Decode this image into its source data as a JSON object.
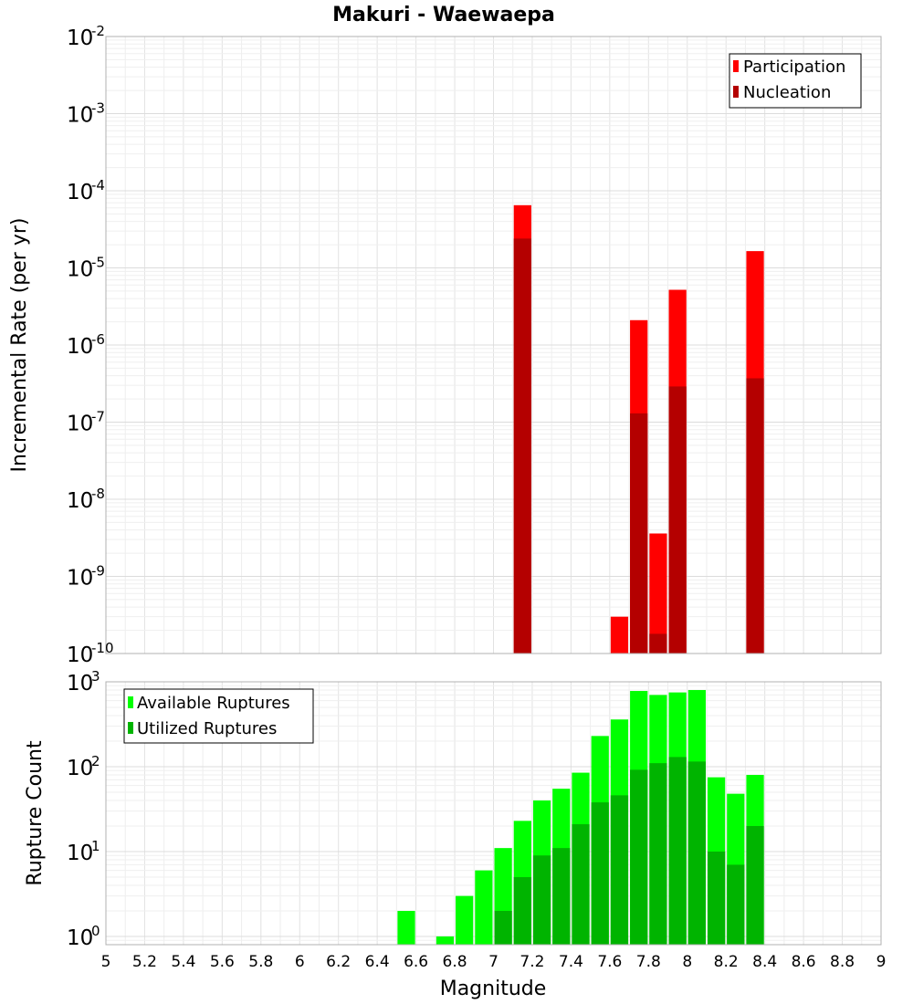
{
  "chart_data": [
    {
      "type": "bar",
      "title": "Makuri - Waewaepa",
      "ylabel": "Incremental Rate (per yr)",
      "xlabel": "",
      "yscale": "log",
      "ylim": [
        1e-10,
        0.01
      ],
      "xlim": [
        5,
        9
      ],
      "bar_width": 0.1,
      "y_tick_exponents": [
        "-2",
        "-3",
        "-4",
        "-5",
        "-6",
        "-7",
        "-8",
        "-9",
        "-10"
      ],
      "y_tick_base": "10",
      "legend_position": "top-right",
      "grid": true,
      "series": [
        {
          "name": "Participation",
          "color": "#ff0000",
          "x": [
            7.15,
            7.65,
            7.75,
            7.85,
            7.95,
            8.35
          ],
          "values": [
            6.5e-05,
            3e-10,
            2.1e-06,
            3.6e-09,
            5.2e-06,
            1.65e-05
          ]
        },
        {
          "name": "Nucleation",
          "color": "#b40000",
          "x": [
            7.15,
            7.75,
            7.85,
            7.95,
            8.35
          ],
          "values": [
            2.4e-05,
            1.3e-07,
            1.8e-10,
            2.9e-07,
            3.7e-07
          ]
        }
      ]
    },
    {
      "type": "bar",
      "title": "",
      "ylabel": "Rupture Count",
      "xlabel": "Magnitude",
      "yscale": "log",
      "ylim": [
        0.8,
        1000
      ],
      "xlim": [
        5,
        9
      ],
      "bar_width": 0.1,
      "x_ticks": [
        "5",
        "5.2",
        "5.4",
        "5.6",
        "5.8",
        "6",
        "6.2",
        "6.4",
        "6.6",
        "6.8",
        "7",
        "7.2",
        "7.4",
        "7.6",
        "7.8",
        "8",
        "8.2",
        "8.4",
        "8.6",
        "8.8",
        "9"
      ],
      "y_tick_exponents": [
        "3",
        "2",
        "1",
        "0"
      ],
      "y_tick_base": "10",
      "legend_position": "top-left",
      "grid": true,
      "series": [
        {
          "name": "Available Ruptures",
          "color": "#00ff00",
          "x": [
            6.55,
            6.75,
            6.85,
            6.95,
            7.05,
            7.15,
            7.25,
            7.35,
            7.45,
            7.55,
            7.65,
            7.75,
            7.85,
            7.95,
            8.05,
            8.15,
            8.25,
            8.35
          ],
          "values": [
            2,
            1,
            3,
            6,
            11,
            23,
            40,
            55,
            85,
            230,
            360,
            780,
            700,
            750,
            800,
            75,
            48,
            80
          ]
        },
        {
          "name": "Utilized Ruptures",
          "color": "#00b400",
          "x": [
            7.05,
            7.15,
            7.25,
            7.35,
            7.45,
            7.55,
            7.65,
            7.75,
            7.85,
            7.95,
            8.05,
            8.15,
            8.25,
            8.35
          ],
          "values": [
            2,
            5,
            9,
            11,
            21,
            38,
            46,
            92,
            110,
            130,
            115,
            10,
            7,
            20
          ]
        }
      ]
    }
  ]
}
